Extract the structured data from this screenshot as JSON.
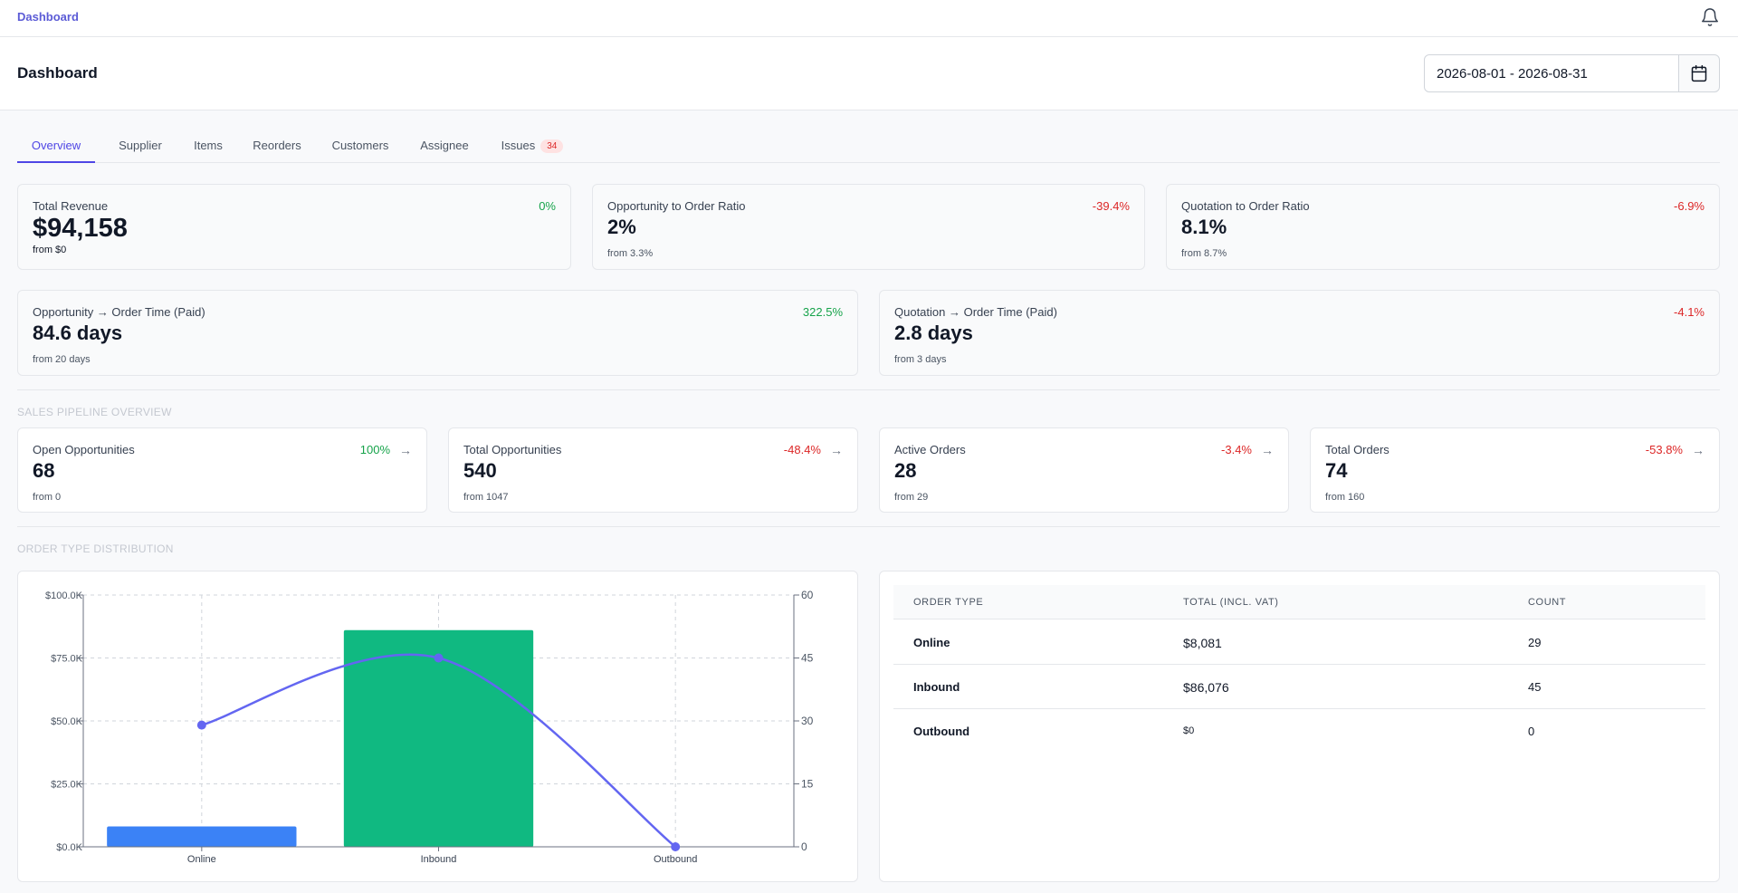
{
  "topbar": {
    "breadcrumb": "Dashboard"
  },
  "header": {
    "title": "Dashboard",
    "date_range": "2026-08-01 - 2026-08-31"
  },
  "tabs": [
    {
      "label": "Overview",
      "active": true
    },
    {
      "label": "Supplier"
    },
    {
      "label": "Items"
    },
    {
      "label": "Reorders"
    },
    {
      "label": "Customers"
    },
    {
      "label": "Assignee"
    },
    {
      "label": "Issues",
      "badge": "34"
    }
  ],
  "kpis_row1": [
    {
      "label": "Total Revenue",
      "value": "$94,158",
      "change": "0%",
      "trend": "up",
      "from": "from $0"
    },
    {
      "label": "Opportunity to Order Ratio",
      "value": "2%",
      "change": "-39.4%",
      "trend": "down",
      "from": "from 3.3%"
    },
    {
      "label": "Quotation to Order Ratio",
      "value": "8.1%",
      "change": "-6.9%",
      "trend": "down",
      "from": "from 8.7%"
    }
  ],
  "kpis_row2": [
    {
      "label": "Opportunity → Order Time (Paid)",
      "value": "84.6 days",
      "change": "322.5%",
      "trend": "up",
      "from": "from 20 days"
    },
    {
      "label": "Quotation → Order Time (Paid)",
      "value": "2.8 days",
      "change": "-4.1%",
      "trend": "down",
      "from": "from 3 days"
    }
  ],
  "pipeline": {
    "title": "SALES PIPELINE OVERVIEW",
    "cards": [
      {
        "label": "Open Opportunities",
        "value": "68",
        "change": "100%",
        "trend": "up",
        "from": "from 0"
      },
      {
        "label": "Total Opportunities",
        "value": "540",
        "change": "-48.4%",
        "trend": "down",
        "from": "from 1047"
      },
      {
        "label": "Active Orders",
        "value": "28",
        "change": "-3.4%",
        "trend": "down",
        "from": "from 29"
      },
      {
        "label": "Total Orders",
        "value": "74",
        "change": "-53.8%",
        "trend": "down",
        "from": "from 160"
      }
    ]
  },
  "distribution": {
    "title": "ORDER TYPE DISTRIBUTION",
    "table": {
      "headers": [
        "ORDER TYPE",
        "TOTAL (INCL. VAT)",
        "COUNT"
      ],
      "rows": [
        {
          "type": "Online",
          "total": "$8,081",
          "count": "29"
        },
        {
          "type": "Inbound",
          "total": "$86,076",
          "count": "45"
        },
        {
          "type": "Outbound",
          "total": "$0",
          "count": "0"
        }
      ]
    }
  },
  "chart_data": {
    "type": "bar",
    "categories": [
      "Online",
      "Inbound",
      "Outbound"
    ],
    "series": [
      {
        "type": "bar",
        "axis": "left",
        "values": [
          8081,
          86076,
          0
        ],
        "colors": [
          "#3b82f6",
          "#10b981",
          "#ef4444"
        ]
      },
      {
        "type": "line",
        "axis": "right",
        "values": [
          29,
          45,
          0
        ],
        "color": "#6366f1",
        "smooth": true
      }
    ],
    "y_left": {
      "ticks": [
        "$0.0K",
        "$25.0K",
        "$50.0K",
        "$75.0K",
        "$100.0K"
      ],
      "lim": [
        0,
        100000
      ]
    },
    "y_right": {
      "ticks": [
        "0",
        "15",
        "30",
        "45",
        "60"
      ],
      "lim": [
        0,
        60
      ]
    },
    "grid": true
  }
}
